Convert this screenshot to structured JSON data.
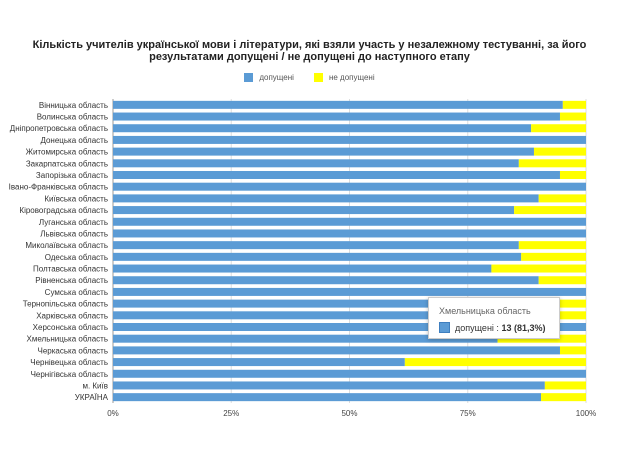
{
  "chart_data": {
    "type": "bar",
    "stacked": "percent",
    "orientation": "horizontal",
    "title_line1": "Кількість учителів української мови і літератури, які взяли участь у незалежному тестуванні, за його",
    "title_line2": "результатами допущені / не допущені до наступного етапу",
    "categories": [
      "Вінницька область",
      "Волинська область",
      "Дніпропетровська область",
      "Донецька область",
      "Житомирська область",
      "Закарпатська область",
      "Запорізька область",
      "Івано-Франківська область",
      "Київська область",
      "Кіровоградська область",
      "Луганська область",
      "Львівська область",
      "Миколаївська область",
      "Одеська область",
      "Полтавська область",
      "Рівненська область",
      "Сумська область",
      "Тернопільська область",
      "Харківська область",
      "Херсонська область",
      "Хмельницька область",
      "Черкаська область",
      "Чернівецька область",
      "Чернігівська область",
      "м. Київ",
      "УКРАЇНА"
    ],
    "series": [
      {
        "name": "допущені",
        "color": "#5b9bd5",
        "values": [
          95.1,
          94.5,
          88.4,
          100,
          89,
          85.8,
          94.5,
          100,
          90,
          84.8,
          100,
          100,
          85.8,
          86.3,
          80,
          90,
          100,
          94.5,
          94.5,
          100,
          81.3,
          94.5,
          61.7,
          100,
          91.3,
          90.5
        ]
      },
      {
        "name": "не допущені",
        "color": "#ffff00",
        "values": [
          4.9,
          5.5,
          11.6,
          0,
          11,
          14.2,
          5.5,
          0,
          10,
          15.2,
          0,
          0,
          14.2,
          13.7,
          20,
          10,
          0,
          5.5,
          5.5,
          0,
          18.7,
          5.5,
          38.3,
          0,
          8.7,
          9.5
        ]
      }
    ],
    "xticks": [
      "0%",
      "25%",
      "50%",
      "75%",
      "100%"
    ],
    "xlim": [
      0,
      100
    ],
    "grid": true,
    "legend": "top"
  },
  "tooltip": {
    "title": "Хмельницька область",
    "series": "допущені",
    "sep": " : ",
    "value": "13 (81,3%)",
    "color": "#5b9bd5"
  }
}
